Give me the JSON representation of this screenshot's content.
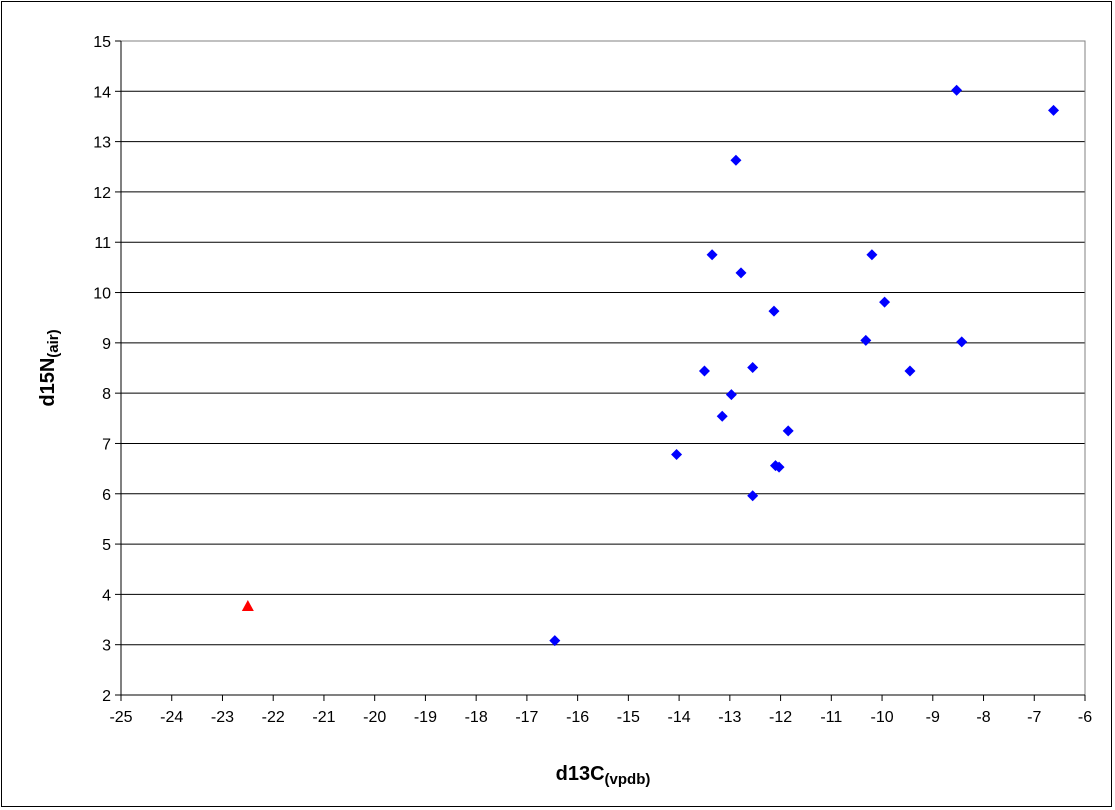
{
  "chart_data": {
    "type": "scatter",
    "title": "",
    "xlabel": {
      "main": "d13C",
      "sub": "(vpdb)"
    },
    "ylabel": {
      "main": "d15N",
      "sub": "(air)"
    },
    "xlim": [
      -25,
      -6
    ],
    "ylim": [
      2,
      15
    ],
    "x_ticks": [
      -25,
      -24,
      -23,
      -22,
      -21,
      -20,
      -19,
      -18,
      -17,
      -16,
      -15,
      -14,
      -13,
      -12,
      -11,
      -10,
      -9,
      -8,
      -7,
      -6
    ],
    "y_ticks": [
      2,
      3,
      4,
      5,
      6,
      7,
      8,
      9,
      10,
      11,
      12,
      13,
      14,
      15
    ],
    "grid": "horizontal major gridlines",
    "legend": "none",
    "series": [
      {
        "marker": "diamond",
        "color": "#0000ff",
        "points": [
          [
            -16.45,
            3.08
          ],
          [
            -14.05,
            6.78
          ],
          [
            -13.5,
            8.44
          ],
          [
            -13.35,
            10.75
          ],
          [
            -13.15,
            7.54
          ],
          [
            -12.97,
            7.97
          ],
          [
            -12.88,
            12.63
          ],
          [
            -12.78,
            10.39
          ],
          [
            -12.55,
            8.51
          ],
          [
            -12.55,
            5.96
          ],
          [
            -12.13,
            9.63
          ],
          [
            -12.1,
            6.56
          ],
          [
            -12.03,
            6.53
          ],
          [
            -11.85,
            7.25
          ],
          [
            -10.32,
            9.05
          ],
          [
            -10.2,
            10.75
          ],
          [
            -9.95,
            9.81
          ],
          [
            -9.45,
            8.44
          ],
          [
            -8.53,
            14.02
          ],
          [
            -8.43,
            9.02
          ],
          [
            -6.62,
            13.62
          ]
        ]
      },
      {
        "marker": "triangle",
        "color": "#ff0000",
        "points": [
          [
            -22.5,
            3.77
          ]
        ]
      }
    ]
  }
}
